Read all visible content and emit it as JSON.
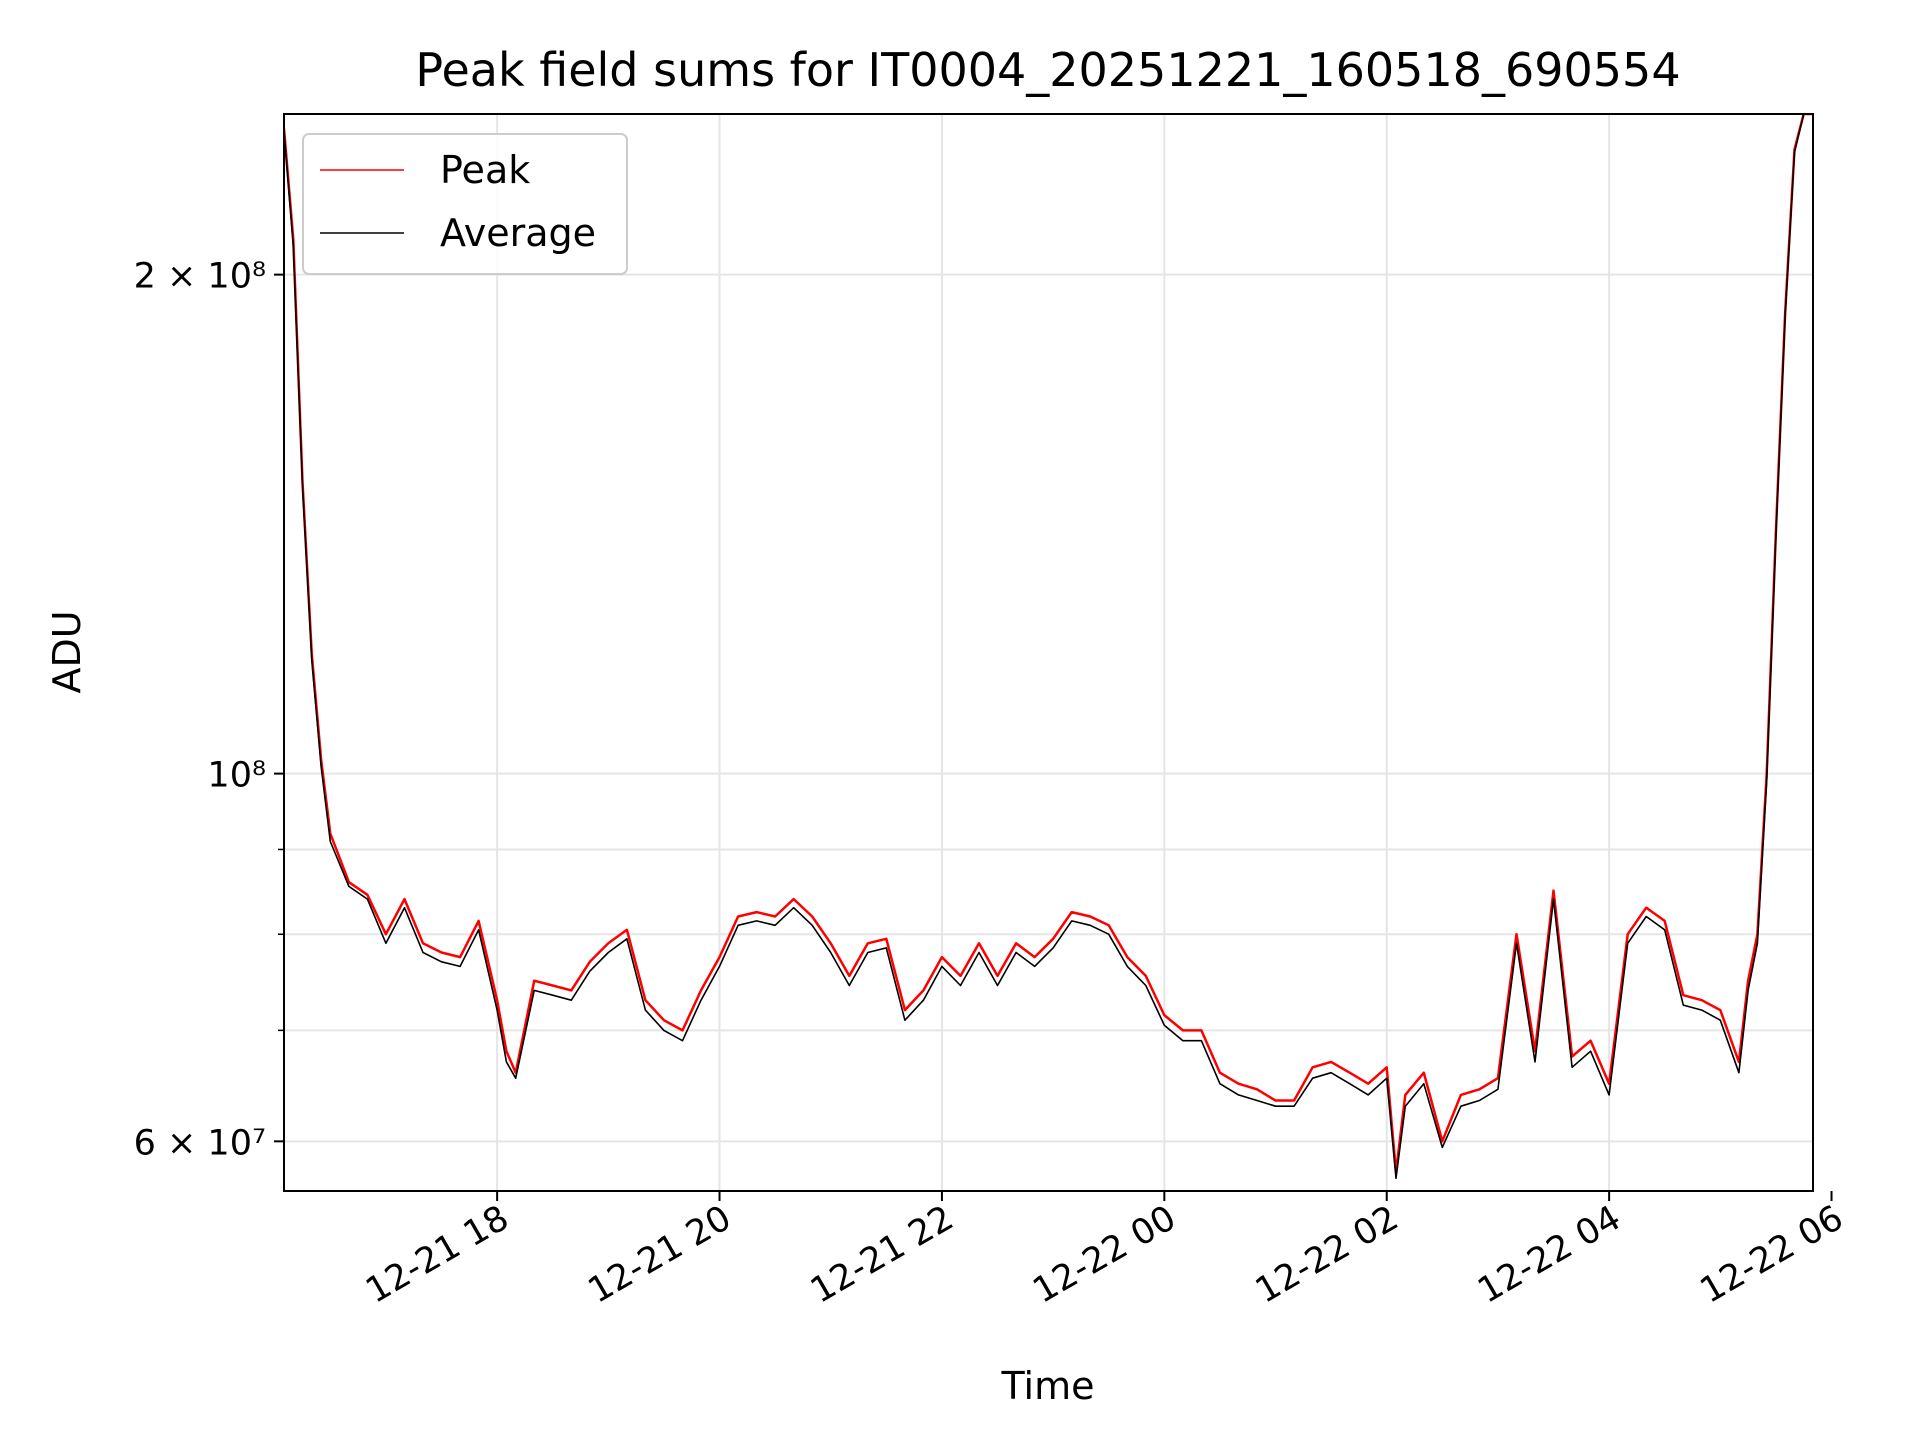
{
  "chart_data": {
    "type": "line",
    "title": "Peak field sums for IT0004_20251221_160518_690554",
    "xlabel": "Time",
    "ylabel": "ADU",
    "yscale": "log",
    "grid": true,
    "legend_position": "top-left",
    "xlim": [
      "2025-12-21 16:05",
      "2025-12-22 05:50"
    ],
    "ylim": [
      56000000,
      250000000
    ],
    "x_ticks": [
      "12-21 18",
      "12-21 20",
      "12-21 22",
      "12-22 00",
      "12-22 02",
      "12-22 04",
      "12-22 06"
    ],
    "y_ticks_major": [
      "2 × 10⁸",
      "10⁸",
      "6 × 10⁷"
    ],
    "series": [
      {
        "name": "Peak",
        "color": "#ff0000",
        "x": [
          "2025-12-21 16:05",
          "2025-12-21 16:10",
          "2025-12-21 16:15",
          "2025-12-21 16:20",
          "2025-12-21 16:25",
          "2025-12-21 16:30",
          "2025-12-21 16:40",
          "2025-12-21 16:50",
          "2025-12-21 17:00",
          "2025-12-21 17:10",
          "2025-12-21 17:20",
          "2025-12-21 17:30",
          "2025-12-21 17:40",
          "2025-12-21 17:50",
          "2025-12-21 18:00",
          "2025-12-21 18:05",
          "2025-12-21 18:10",
          "2025-12-21 18:20",
          "2025-12-21 18:30",
          "2025-12-21 18:40",
          "2025-12-21 18:50",
          "2025-12-21 19:00",
          "2025-12-21 19:10",
          "2025-12-21 19:20",
          "2025-12-21 19:30",
          "2025-12-21 19:40",
          "2025-12-21 19:50",
          "2025-12-21 20:00",
          "2025-12-21 20:10",
          "2025-12-21 20:20",
          "2025-12-21 20:30",
          "2025-12-21 20:40",
          "2025-12-21 20:50",
          "2025-12-21 21:00",
          "2025-12-21 21:10",
          "2025-12-21 21:20",
          "2025-12-21 21:30",
          "2025-12-21 21:40",
          "2025-12-21 21:50",
          "2025-12-21 22:00",
          "2025-12-21 22:10",
          "2025-12-21 22:20",
          "2025-12-21 22:30",
          "2025-12-21 22:40",
          "2025-12-21 22:50",
          "2025-12-21 23:00",
          "2025-12-21 23:10",
          "2025-12-21 23:20",
          "2025-12-21 23:30",
          "2025-12-21 23:40",
          "2025-12-21 23:50",
          "2025-12-22 00:00",
          "2025-12-22 00:10",
          "2025-12-22 00:20",
          "2025-12-22 00:30",
          "2025-12-22 00:40",
          "2025-12-22 00:50",
          "2025-12-22 01:00",
          "2025-12-22 01:10",
          "2025-12-22 01:20",
          "2025-12-22 01:30",
          "2025-12-22 01:40",
          "2025-12-22 01:50",
          "2025-12-22 02:00",
          "2025-12-22 02:05",
          "2025-12-22 02:10",
          "2025-12-22 02:20",
          "2025-12-22 02:30",
          "2025-12-22 02:40",
          "2025-12-22 02:50",
          "2025-12-22 03:00",
          "2025-12-22 03:10",
          "2025-12-22 03:20",
          "2025-12-22 03:30",
          "2025-12-22 03:40",
          "2025-12-22 03:50",
          "2025-12-22 04:00",
          "2025-12-22 04:10",
          "2025-12-22 04:20",
          "2025-12-22 04:30",
          "2025-12-22 04:40",
          "2025-12-22 04:50",
          "2025-12-22 05:00",
          "2025-12-22 05:10",
          "2025-12-22 05:15",
          "2025-12-22 05:20",
          "2025-12-22 05:25",
          "2025-12-22 05:30",
          "2025-12-22 05:35",
          "2025-12-22 05:40",
          "2025-12-22 05:45",
          "2025-12-22 05:50"
        ],
        "y": [
          245000000,
          210000000,
          150000000,
          118000000,
          102000000,
          92000000,
          86000000,
          84500000,
          80000000,
          84000000,
          79000000,
          78000000,
          77500000,
          81500000,
          73000000,
          68000000,
          66000000,
          75000000,
          74500000,
          74000000,
          77000000,
          79000000,
          80500000,
          73000000,
          71000000,
          70000000,
          74000000,
          77500000,
          82000000,
          82500000,
          82000000,
          84000000,
          82000000,
          79000000,
          75500000,
          79000000,
          79500000,
          72000000,
          74000000,
          77500000,
          75500000,
          79000000,
          75500000,
          79000000,
          77500000,
          79500000,
          82500000,
          82000000,
          81000000,
          77500000,
          75500000,
          71500000,
          70000000,
          70000000,
          66000000,
          65000000,
          64500000,
          63500000,
          63500000,
          66500000,
          67000000,
          66000000,
          65000000,
          66500000,
          57500000,
          64000000,
          66000000,
          60000000,
          64000000,
          64500000,
          65500000,
          80000000,
          68000000,
          85000000,
          67500000,
          69000000,
          65000000,
          80000000,
          83000000,
          81500000,
          73500000,
          73000000,
          72000000,
          67000000,
          75000000,
          80000000,
          100000000,
          140000000,
          190000000,
          238000000,
          250000000,
          250000000
        ]
      },
      {
        "name": "Average",
        "color": "#000000",
        "x": [
          "2025-12-21 16:05",
          "2025-12-21 16:10",
          "2025-12-21 16:15",
          "2025-12-21 16:20",
          "2025-12-21 16:25",
          "2025-12-21 16:30",
          "2025-12-21 16:40",
          "2025-12-21 16:50",
          "2025-12-21 17:00",
          "2025-12-21 17:10",
          "2025-12-21 17:20",
          "2025-12-21 17:30",
          "2025-12-21 17:40",
          "2025-12-21 17:50",
          "2025-12-21 18:00",
          "2025-12-21 18:05",
          "2025-12-21 18:10",
          "2025-12-21 18:20",
          "2025-12-21 18:30",
          "2025-12-21 18:40",
          "2025-12-21 18:50",
          "2025-12-21 19:00",
          "2025-12-21 19:10",
          "2025-12-21 19:20",
          "2025-12-21 19:30",
          "2025-12-21 19:40",
          "2025-12-21 19:50",
          "2025-12-21 20:00",
          "2025-12-21 20:10",
          "2025-12-21 20:20",
          "2025-12-21 20:30",
          "2025-12-21 20:40",
          "2025-12-21 20:50",
          "2025-12-21 21:00",
          "2025-12-21 21:10",
          "2025-12-21 21:20",
          "2025-12-21 21:30",
          "2025-12-21 21:40",
          "2025-12-21 21:50",
          "2025-12-21 22:00",
          "2025-12-21 22:10",
          "2025-12-21 22:20",
          "2025-12-21 22:30",
          "2025-12-21 22:40",
          "2025-12-21 22:50",
          "2025-12-21 23:00",
          "2025-12-21 23:10",
          "2025-12-21 23:20",
          "2025-12-21 23:30",
          "2025-12-21 23:40",
          "2025-12-21 23:50",
          "2025-12-22 00:00",
          "2025-12-22 00:10",
          "2025-12-22 00:20",
          "2025-12-22 00:30",
          "2025-12-22 00:40",
          "2025-12-22 00:50",
          "2025-12-22 01:00",
          "2025-12-22 01:10",
          "2025-12-22 01:20",
          "2025-12-22 01:30",
          "2025-12-22 01:40",
          "2025-12-22 01:50",
          "2025-12-22 02:00",
          "2025-12-22 02:05",
          "2025-12-22 02:10",
          "2025-12-22 02:20",
          "2025-12-22 02:30",
          "2025-12-22 02:40",
          "2025-12-22 02:50",
          "2025-12-22 03:00",
          "2025-12-22 03:10",
          "2025-12-22 03:20",
          "2025-12-22 03:30",
          "2025-12-22 03:40",
          "2025-12-22 03:50",
          "2025-12-22 04:00",
          "2025-12-22 04:10",
          "2025-12-22 04:20",
          "2025-12-22 04:30",
          "2025-12-22 04:40",
          "2025-12-22 04:50",
          "2025-12-22 05:00",
          "2025-12-22 05:10",
          "2025-12-22 05:15",
          "2025-12-22 05:20",
          "2025-12-22 05:25",
          "2025-12-22 05:30",
          "2025-12-22 05:35",
          "2025-12-22 05:40",
          "2025-12-22 05:45",
          "2025-12-22 05:50"
        ],
        "y": [
          244000000,
          208000000,
          149000000,
          117000000,
          101000000,
          91000000,
          85500000,
          84000000,
          79000000,
          83000000,
          78000000,
          77000000,
          76500000,
          80500000,
          72000000,
          67000000,
          65500000,
          74000000,
          73500000,
          73000000,
          76000000,
          78000000,
          79500000,
          72000000,
          70000000,
          69000000,
          73000000,
          76500000,
          81000000,
          81500000,
          81000000,
          83000000,
          81000000,
          78000000,
          74500000,
          78000000,
          78500000,
          71000000,
          73000000,
          76500000,
          74500000,
          78000000,
          74500000,
          78000000,
          76500000,
          78500000,
          81500000,
          81000000,
          80000000,
          76500000,
          74500000,
          70500000,
          69000000,
          69000000,
          65000000,
          64000000,
          63500000,
          63000000,
          63000000,
          65500000,
          66000000,
          65000000,
          64000000,
          65500000,
          57000000,
          63000000,
          65000000,
          59500000,
          63000000,
          63500000,
          64500000,
          79000000,
          67000000,
          84000000,
          66500000,
          68000000,
          64000000,
          79000000,
          82000000,
          80500000,
          72500000,
          72000000,
          71000000,
          66000000,
          74000000,
          79000000,
          99000000,
          139000000,
          189000000,
          237000000,
          250000000,
          250000000
        ]
      }
    ]
  }
}
